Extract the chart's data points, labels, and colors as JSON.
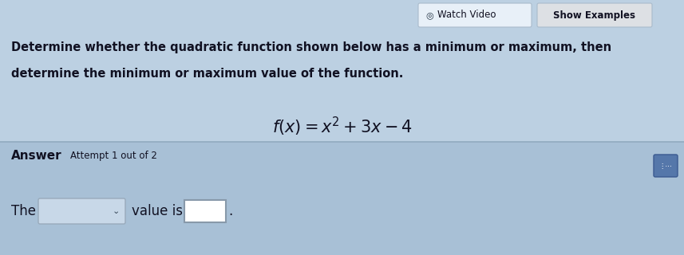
{
  "bg_upper": "#b8cfe0",
  "bg_lower": "#a8c4d8",
  "separator_color": "#8aaabb",
  "title_line1": "Determine whether the quadratic function shown below has a minimum or maximum, then",
  "title_line2": "determine the minimum or maximum value of the function.",
  "equation": "$f(x) = x^2 + 3x - 4$",
  "answer_bold": "Answer",
  "attempt_text": "Attempt 1 out of 2",
  "the_text": "The",
  "value_is_text": "value is",
  "watch_video_text": "Watch Video",
  "show_examples_text": "Show Examples",
  "watch_btn_bg": "#ddeeff",
  "show_btn_bg": "#d8d8d8",
  "dropdown_bg": "#c0d4e4",
  "input_bg": "#ffffff",
  "calc_icon_bg": "#5577aa",
  "text_color": "#111122",
  "figsize": [
    8.57,
    3.2
  ],
  "dpi": 100
}
